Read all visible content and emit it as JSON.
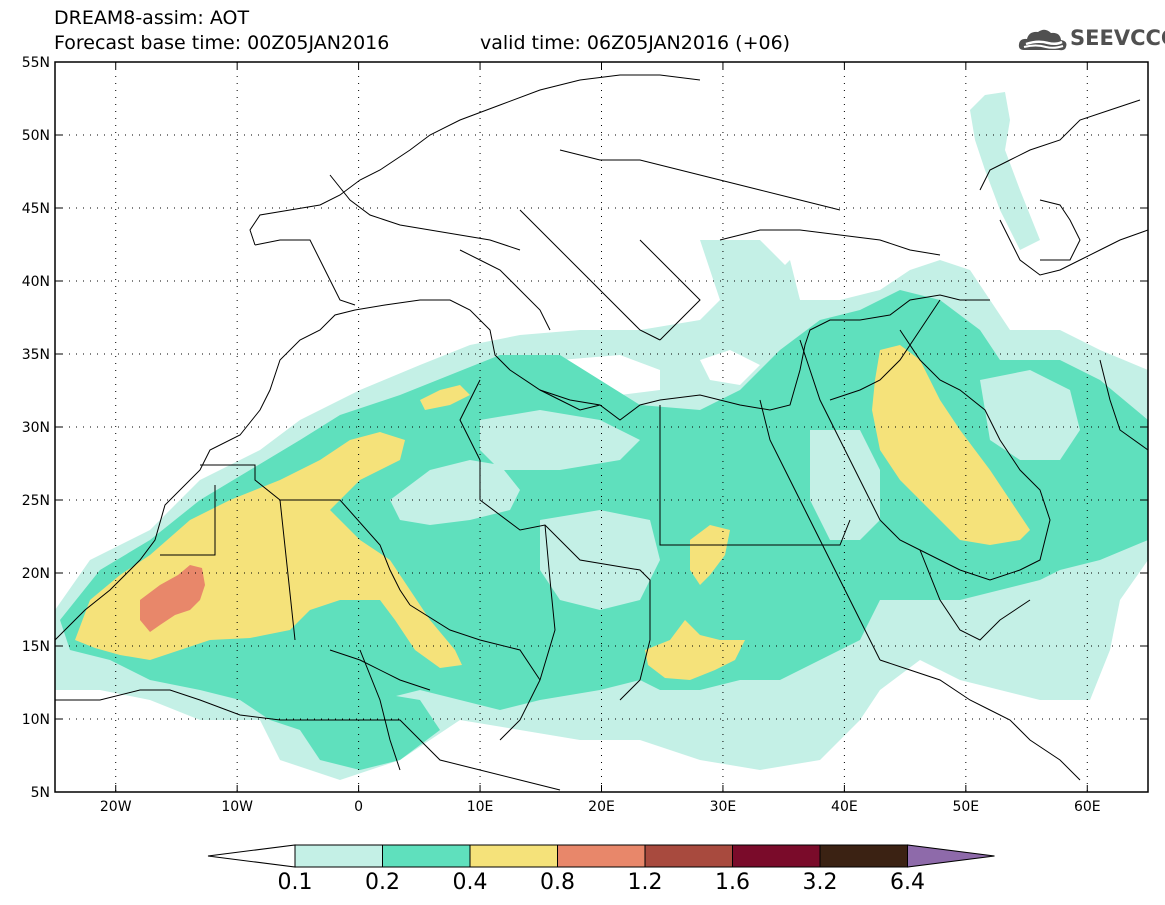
{
  "header": {
    "line1": "DREAM8-assim: AOT",
    "base_time": "Forecast base time: 00Z05JAN2016",
    "valid_time": "valid time: 06Z05JAN2016 (+06)"
  },
  "logo": {
    "text": "SEEVCCC",
    "icon": "cloud-icon"
  },
  "map": {
    "lon_range": [
      -25,
      65
    ],
    "lat_range": [
      5,
      55
    ],
    "lat_labels": [
      "55N",
      "50N",
      "45N",
      "40N",
      "35N",
      "30N",
      "25N",
      "20N",
      "15N",
      "10N",
      "5N"
    ],
    "lon_labels": [
      "20W",
      "10W",
      "0",
      "10E",
      "20E",
      "30E",
      "40E",
      "50E",
      "60E"
    ],
    "variable": "AOT"
  },
  "colorbar": {
    "levels": [
      "0.1",
      "0.2",
      "0.4",
      "0.8",
      "1.2",
      "1.6",
      "3.2",
      "6.4"
    ],
    "colors": [
      "#ffffff",
      "#c4f0e6",
      "#5fe0bd",
      "#f5e27a",
      "#e8876a",
      "#a84a3e",
      "#7a0b2a",
      "#3b2213",
      "#8e6aaa"
    ]
  },
  "colors": {
    "c01": "#c4f0e6",
    "c02": "#5fe0bd",
    "c04": "#f5e27a",
    "c08": "#e8876a"
  }
}
